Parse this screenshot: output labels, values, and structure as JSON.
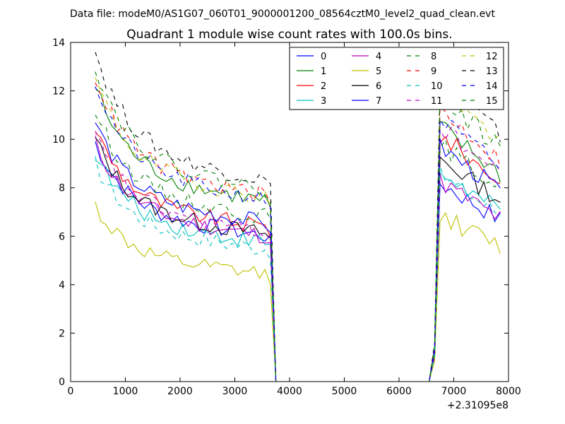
{
  "chart_data": {
    "type": "line",
    "suptitle": "Data file: modeM0/AS1G07_060T01_9000001200_08564cztM0_level2_quad_clean.evt",
    "title": "Quadrant 1 module wise count rates with 100.0s bins.",
    "xlabel": "",
    "ylabel": "",
    "x_offset_label": "+2.31095e8",
    "xlim": [
      0,
      8000
    ],
    "ylim": [
      0,
      14
    ],
    "xticks": [
      0,
      1000,
      2000,
      3000,
      4000,
      5000,
      6000,
      7000,
      8000
    ],
    "yticks": [
      0,
      2,
      4,
      6,
      8,
      10,
      12,
      14
    ],
    "legend_position": "top-right",
    "legend_columns": 4,
    "series": [
      {
        "name": "0",
        "color": "#0000ff",
        "dash": "solid",
        "base": 6.8,
        "gap": 6.95
      },
      {
        "name": "1",
        "color": "#008000",
        "dash": "solid",
        "base": 8.4,
        "gap": 8.9
      },
      {
        "name": "2",
        "color": "#ff0000",
        "dash": "solid",
        "base": 7.2,
        "gap": 8.6
      },
      {
        "name": "3",
        "color": "#00bfbf",
        "dash": "solid",
        "base": 6.5,
        "gap": 7.3
      },
      {
        "name": "4",
        "color": "#bf00bf",
        "dash": "solid",
        "base": 6.8,
        "gap": 7.0
      },
      {
        "name": "5",
        "color": "#bfbf00",
        "dash": "solid",
        "base": 5.0,
        "gap": 5.8
      },
      {
        "name": "6",
        "color": "#000000",
        "dash": "solid",
        "base": 6.9,
        "gap": 7.8
      },
      {
        "name": "7",
        "color": "#0000ff",
        "dash": "solid",
        "base": 7.4,
        "gap": 8.2
      },
      {
        "name": "8",
        "color": "#008000",
        "dash": "dashed",
        "base": 7.7,
        "gap": 8.3
      },
      {
        "name": "9",
        "color": "#ff0000",
        "dash": "dashed",
        "base": 8.7,
        "gap": 9.5
      },
      {
        "name": "10",
        "color": "#00bfbf",
        "dash": "dashed",
        "base": 6.2,
        "gap": 7.2
      },
      {
        "name": "11",
        "color": "#bf00bf",
        "dash": "dashed",
        "base": 7.0,
        "gap": 8.9
      },
      {
        "name": "12",
        "color": "#bfbf00",
        "dash": "dashed",
        "base": 8.6,
        "gap": 10.3
      },
      {
        "name": "13",
        "color": "#000000",
        "dash": "dashed",
        "base": 9.4,
        "gap": 10.6
      },
      {
        "name": "14",
        "color": "#0000ff",
        "dash": "dashed",
        "base": 8.5,
        "gap": 9.2
      },
      {
        "name": "15",
        "color": "#008000",
        "dash": "dashed",
        "base": 9.0,
        "gap": 10.0
      }
    ]
  }
}
